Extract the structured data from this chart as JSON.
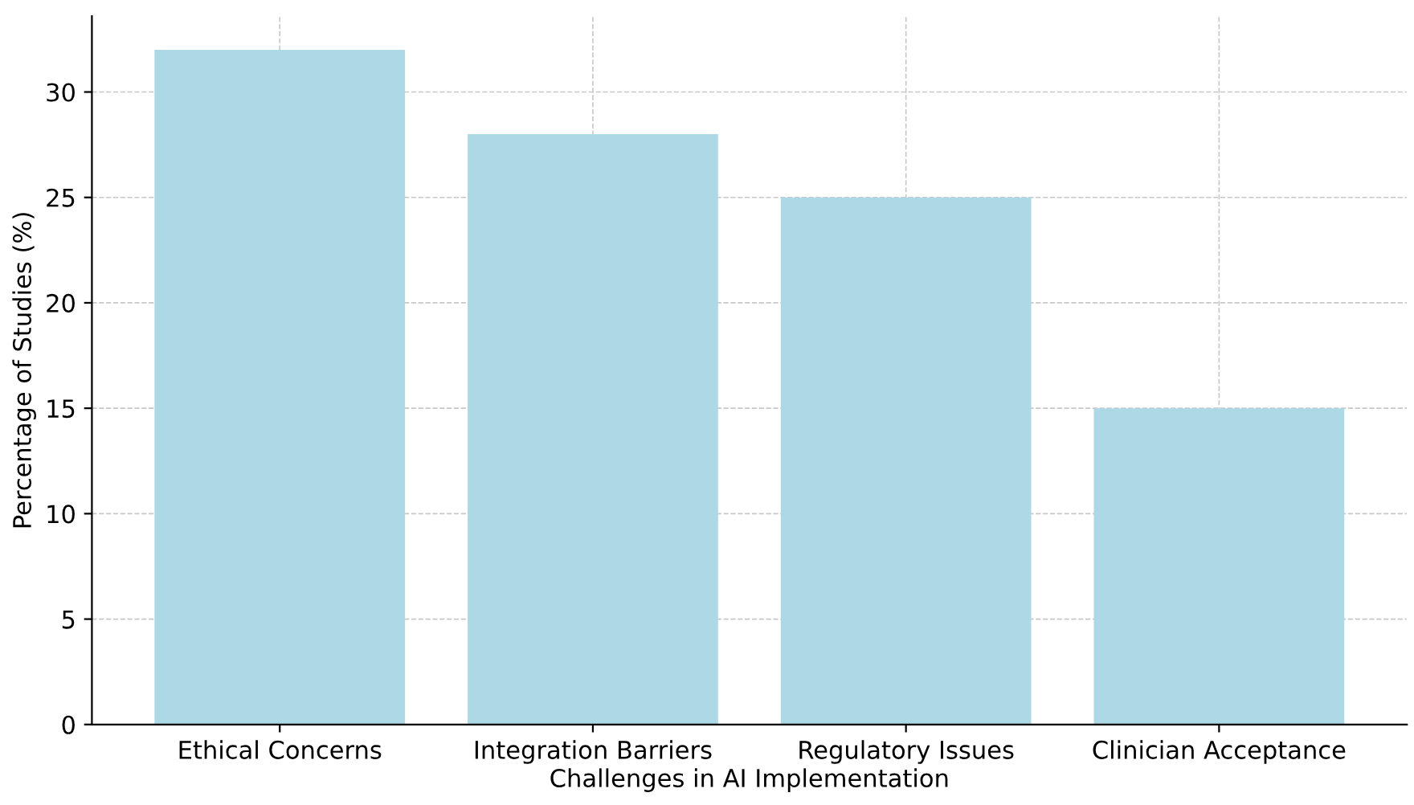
{
  "chart_data": {
    "type": "bar",
    "xlabel": "Challenges in AI Implementation",
    "ylabel": "Percentage of Studies (%)",
    "categories": [
      "Ethical Concerns",
      "Integration Barriers",
      "Regulatory Issues",
      "Clinician Acceptance"
    ],
    "values": [
      32,
      28,
      25,
      15
    ],
    "color": "#add8e6",
    "ylim": [
      0,
      33.6
    ],
    "yticks": [
      0,
      5,
      10,
      15,
      20,
      25,
      30
    ],
    "grid": true,
    "line_style": "dashed"
  }
}
